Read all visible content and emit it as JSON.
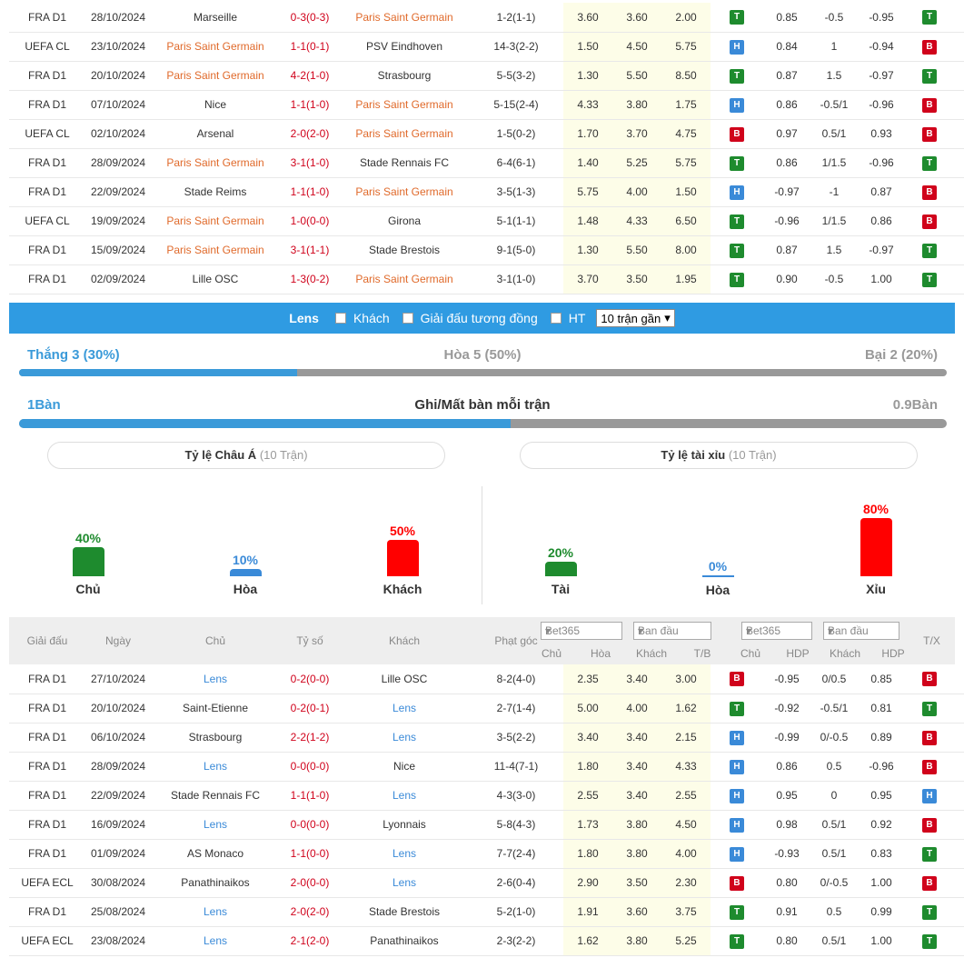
{
  "colors": {
    "accent": "#2f9be2",
    "win": "#1e8b2e",
    "loss": "#d0021b",
    "draw": "#3a8ad8",
    "highlight_team_top": "#e06a2b",
    "highlight_team_bottom": "#3a8ad8"
  },
  "top_matches": [
    {
      "league": "FRA D1",
      "date": "28/10/2024",
      "home": "Marseille",
      "score": "0-3(0-3)",
      "away": "Paris Saint Germain",
      "corners": "1-2(1-1)",
      "o1": "3.60",
      "o2": "3.60",
      "o3": "2.00",
      "r1": "T",
      "h1": "0.85",
      "h2": "-0.5",
      "h3": "-0.95",
      "r2": "T",
      "r3": "H",
      "hl": "away"
    },
    {
      "league": "UEFA CL",
      "date": "23/10/2024",
      "home": "Paris Saint Germain",
      "score": "1-1(0-1)",
      "away": "PSV Eindhoven",
      "corners": "14-3(2-2)",
      "o1": "1.50",
      "o2": "4.50",
      "o3": "5.75",
      "r1": "H",
      "h1": "0.84",
      "h2": "1",
      "h3": "-0.94",
      "r2": "B",
      "r3": "X",
      "hl": "home"
    },
    {
      "league": "FRA D1",
      "date": "20/10/2024",
      "home": "Paris Saint Germain",
      "score": "4-2(1-0)",
      "away": "Strasbourg",
      "corners": "5-5(3-2)",
      "o1": "1.30",
      "o2": "5.50",
      "o3": "8.50",
      "r1": "T",
      "h1": "0.87",
      "h2": "1.5",
      "h3": "-0.97",
      "r2": "T",
      "r3": "T",
      "hl": "home"
    },
    {
      "league": "FRA D1",
      "date": "07/10/2024",
      "home": "Nice",
      "score": "1-1(1-0)",
      "away": "Paris Saint Germain",
      "corners": "5-15(2-4)",
      "o1": "4.33",
      "o2": "3.80",
      "o3": "1.75",
      "r1": "H",
      "h1": "0.86",
      "h2": "-0.5/1",
      "h3": "-0.96",
      "r2": "B",
      "r3": "X",
      "hl": "away"
    },
    {
      "league": "UEFA CL",
      "date": "02/10/2024",
      "home": "Arsenal",
      "score": "2-0(2-0)",
      "away": "Paris Saint Germain",
      "corners": "1-5(0-2)",
      "o1": "1.70",
      "o2": "3.70",
      "o3": "4.75",
      "r1": "B",
      "h1": "0.97",
      "h2": "0.5/1",
      "h3": "0.93",
      "r2": "B",
      "r3": "X",
      "hl": "away"
    },
    {
      "league": "FRA D1",
      "date": "28/09/2024",
      "home": "Paris Saint Germain",
      "score": "3-1(1-0)",
      "away": "Stade Rennais FC",
      "corners": "6-4(6-1)",
      "o1": "1.40",
      "o2": "5.25",
      "o3": "5.75",
      "r1": "T",
      "h1": "0.86",
      "h2": "1/1.5",
      "h3": "-0.96",
      "r2": "T",
      "r3": "T",
      "hl": "home"
    },
    {
      "league": "FRA D1",
      "date": "22/09/2024",
      "home": "Stade Reims",
      "score": "1-1(1-0)",
      "away": "Paris Saint Germain",
      "corners": "3-5(1-3)",
      "o1": "5.75",
      "o2": "4.00",
      "o3": "1.50",
      "r1": "H",
      "h1": "-0.97",
      "h2": "-1",
      "h3": "0.87",
      "r2": "B",
      "r3": "X",
      "hl": "away"
    },
    {
      "league": "UEFA CL",
      "date": "19/09/2024",
      "home": "Paris Saint Germain",
      "score": "1-0(0-0)",
      "away": "Girona",
      "corners": "5-1(1-1)",
      "o1": "1.48",
      "o2": "4.33",
      "o3": "6.50",
      "r1": "T",
      "h1": "-0.96",
      "h2": "1/1.5",
      "h3": "0.86",
      "r2": "B",
      "r3": "X",
      "hl": "home"
    },
    {
      "league": "FRA D1",
      "date": "15/09/2024",
      "home": "Paris Saint Germain",
      "score": "3-1(1-1)",
      "away": "Stade Brestois",
      "corners": "9-1(5-0)",
      "o1": "1.30",
      "o2": "5.50",
      "o3": "8.00",
      "r1": "T",
      "h1": "0.87",
      "h2": "1.5",
      "h3": "-0.97",
      "r2": "T",
      "r3": "T",
      "hl": "home"
    },
    {
      "league": "FRA D1",
      "date": "02/09/2024",
      "home": "Lille OSC",
      "score": "1-3(0-2)",
      "away": "Paris Saint Germain",
      "corners": "3-1(1-0)",
      "o1": "3.70",
      "o2": "3.50",
      "o3": "1.95",
      "r1": "T",
      "h1": "0.90",
      "h2": "-0.5",
      "h3": "1.00",
      "r2": "T",
      "r3": "T",
      "hl": "away"
    }
  ],
  "filter": {
    "team": "Lens",
    "opt1": "Khách",
    "opt2": "Giải đấu tương đồng",
    "opt3": "HT",
    "select": "10 trận gần"
  },
  "summary": {
    "win_label": "Thắng 3 (30%)",
    "draw_label": "Hòa 5 (50%)",
    "loss_label": "Bại 2 (20%)",
    "win_fraction": 0.3,
    "goals_for": "1Bàn",
    "goals_title": "Ghi/Mất bàn mỗi trận",
    "goals_against": "0.9Bàn",
    "goals_fraction": 0.53
  },
  "asian": {
    "title": "Tỷ lệ Châu Á",
    "sub": "(10 Trận)",
    "bars": [
      {
        "pct": "40%",
        "value": 40,
        "label": "Chủ",
        "color": "#1e8b2e"
      },
      {
        "pct": "10%",
        "value": 10,
        "label": "Hòa",
        "color": "#3a8ad8"
      },
      {
        "pct": "50%",
        "value": 50,
        "label": "Khách",
        "color": "#ff0000"
      }
    ]
  },
  "overunder": {
    "title": "Tỷ lệ tài xỉu",
    "sub": "(10 Trận)",
    "bars": [
      {
        "pct": "20%",
        "value": 20,
        "label": "Tài",
        "color": "#1e8b2e"
      },
      {
        "pct": "0%",
        "value": 0,
        "label": "Hòa",
        "color": "#3a8ad8"
      },
      {
        "pct": "80%",
        "value": 80,
        "label": "Xỉu",
        "color": "#ff0000"
      }
    ]
  },
  "header": {
    "league": "Giải đấu",
    "date": "Ngày",
    "home": "Chủ",
    "score": "Tỷ số",
    "away": "Khách",
    "corners": "Phạt góc",
    "book1": "Bet365",
    "type1": "Ban đầu",
    "book2": "Bet365",
    "type2": "Ban đầu",
    "c1": "Chủ",
    "c2": "Hòa",
    "c3": "Khách",
    "c4": "T/B",
    "c5": "Chủ",
    "c6": "HDP",
    "c7": "Khách",
    "c8": "HDP",
    "tx": "T/X"
  },
  "bottom_matches": [
    {
      "league": "FRA D1",
      "date": "27/10/2024",
      "home": "Lens",
      "score": "0-2(0-0)",
      "away": "Lille OSC",
      "corners": "8-2(4-0)",
      "o1": "2.35",
      "o2": "3.40",
      "o3": "3.00",
      "r1": "B",
      "h1": "-0.95",
      "h2": "0/0.5",
      "h3": "0.85",
      "r2": "B",
      "r3": "X",
      "hl": "home"
    },
    {
      "league": "FRA D1",
      "date": "20/10/2024",
      "home": "Saint-Etienne",
      "score": "0-2(0-1)",
      "away": "Lens",
      "corners": "2-7(1-4)",
      "o1": "5.00",
      "o2": "4.00",
      "o3": "1.62",
      "r1": "T",
      "h1": "-0.92",
      "h2": "-0.5/1",
      "h3": "0.81",
      "r2": "T",
      "r3": "X",
      "hl": "away"
    },
    {
      "league": "FRA D1",
      "date": "06/10/2024",
      "home": "Strasbourg",
      "score": "2-2(1-2)",
      "away": "Lens",
      "corners": "3-5(2-2)",
      "o1": "3.40",
      "o2": "3.40",
      "o3": "2.15",
      "r1": "H",
      "h1": "-0.99",
      "h2": "0/-0.5",
      "h3": "0.89",
      "r2": "B",
      "r3": "T",
      "hl": "away"
    },
    {
      "league": "FRA D1",
      "date": "28/09/2024",
      "home": "Lens",
      "score": "0-0(0-0)",
      "away": "Nice",
      "corners": "11-4(7-1)",
      "o1": "1.80",
      "o2": "3.40",
      "o3": "4.33",
      "r1": "H",
      "h1": "0.86",
      "h2": "0.5",
      "h3": "-0.96",
      "r2": "B",
      "r3": "X",
      "hl": "home"
    },
    {
      "league": "FRA D1",
      "date": "22/09/2024",
      "home": "Stade Rennais FC",
      "score": "1-1(1-0)",
      "away": "Lens",
      "corners": "4-3(3-0)",
      "o1": "2.55",
      "o2": "3.40",
      "o3": "2.55",
      "r1": "H",
      "h1": "0.95",
      "h2": "0",
      "h3": "0.95",
      "r2": "H",
      "r3": "X",
      "hl": "away"
    },
    {
      "league": "FRA D1",
      "date": "16/09/2024",
      "home": "Lens",
      "score": "0-0(0-0)",
      "away": "Lyonnais",
      "corners": "5-8(4-3)",
      "o1": "1.73",
      "o2": "3.80",
      "o3": "4.50",
      "r1": "H",
      "h1": "0.98",
      "h2": "0.5/1",
      "h3": "0.92",
      "r2": "B",
      "r3": "X",
      "hl": "home"
    },
    {
      "league": "FRA D1",
      "date": "01/09/2024",
      "home": "AS Monaco",
      "score": "1-1(0-0)",
      "away": "Lens",
      "corners": "7-7(2-4)",
      "o1": "1.80",
      "o2": "3.80",
      "o3": "4.00",
      "r1": "H",
      "h1": "-0.93",
      "h2": "0.5/1",
      "h3": "0.83",
      "r2": "T",
      "r3": "X",
      "hl": "away"
    },
    {
      "league": "UEFA ECL",
      "date": "30/08/2024",
      "home": "Panathinaikos",
      "score": "2-0(0-0)",
      "away": "Lens",
      "corners": "2-6(0-4)",
      "o1": "2.90",
      "o2": "3.50",
      "o3": "2.30",
      "r1": "B",
      "h1": "0.80",
      "h2": "0/-0.5",
      "h3": "1.00",
      "r2": "B",
      "r3": "X",
      "hl": "away"
    },
    {
      "league": "FRA D1",
      "date": "25/08/2024",
      "home": "Lens",
      "score": "2-0(2-0)",
      "away": "Stade Brestois",
      "corners": "5-2(1-0)",
      "o1": "1.91",
      "o2": "3.60",
      "o3": "3.75",
      "r1": "T",
      "h1": "0.91",
      "h2": "0.5",
      "h3": "0.99",
      "r2": "T",
      "r3": "X",
      "hl": "home"
    },
    {
      "league": "UEFA ECL",
      "date": "23/08/2024",
      "home": "Lens",
      "score": "2-1(2-0)",
      "away": "Panathinaikos",
      "corners": "2-3(2-2)",
      "o1": "1.62",
      "o2": "3.80",
      "o3": "5.25",
      "r1": "T",
      "h1": "0.80",
      "h2": "0.5/1",
      "h3": "1.00",
      "r2": "T",
      "r3": "T",
      "hl": "home"
    }
  ]
}
